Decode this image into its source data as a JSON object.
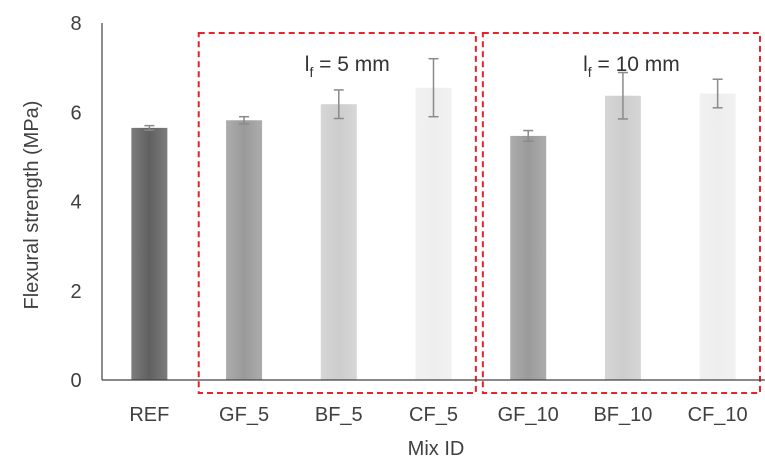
{
  "chart_data": {
    "type": "bar",
    "title": "",
    "xlabel": "Mix ID",
    "ylabel": "Flexural strength (MPa)",
    "ylim": [
      0,
      8
    ],
    "yticks": [
      "0",
      "2",
      "4",
      "6",
      "8"
    ],
    "grid": false,
    "categories": [
      "REF",
      "GF_5",
      "BF_5",
      "CF_5",
      "GF_10",
      "BF_10",
      "CF_10"
    ],
    "values": [
      5.65,
      5.82,
      6.18,
      6.55,
      5.47,
      6.37,
      6.42
    ],
    "errors": [
      0.05,
      0.08,
      0.32,
      0.65,
      0.12,
      0.52,
      0.32
    ],
    "colors": [
      "#606060",
      "#9a9a9a",
      "#cdcdcd",
      "#eeeeee",
      "#9a9a9a",
      "#cdcdcd",
      "#eeeeee"
    ],
    "groups": [
      {
        "label_main": "l",
        "label_sub": "f",
        "label_rest": " = 5 mm",
        "start": 1,
        "end": 3,
        "color": "#e8212b"
      },
      {
        "label_main": "l",
        "label_sub": "f",
        "label_rest": " = 10 mm",
        "start": 4,
        "end": 6,
        "color": "#e8212b"
      }
    ]
  }
}
